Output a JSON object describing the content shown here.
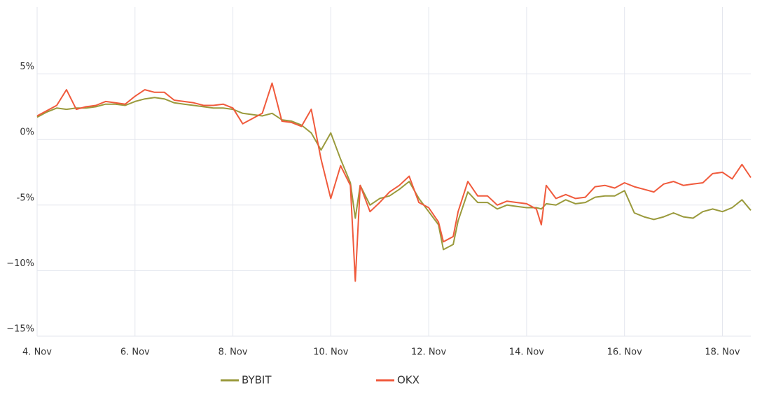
{
  "chart_data": {
    "type": "line",
    "x": [
      4.0,
      4.2,
      4.4,
      4.6,
      4.8,
      5.0,
      5.2,
      5.4,
      5.6,
      5.8,
      6.0,
      6.2,
      6.4,
      6.6,
      6.8,
      7.0,
      7.2,
      7.4,
      7.6,
      7.8,
      8.0,
      8.2,
      8.4,
      8.6,
      8.8,
      9.0,
      9.2,
      9.4,
      9.6,
      9.8,
      10.0,
      10.2,
      10.4,
      10.5,
      10.6,
      10.8,
      11.0,
      11.2,
      11.4,
      11.6,
      11.8,
      12.0,
      12.2,
      12.3,
      12.5,
      12.6,
      12.8,
      13.0,
      13.2,
      13.4,
      13.6,
      13.8,
      14.0,
      14.2,
      14.3,
      14.4,
      14.6,
      14.8,
      15.0,
      15.2,
      15.4,
      15.6,
      15.8,
      16.0,
      16.2,
      16.4,
      16.6,
      16.8,
      17.0,
      17.2,
      17.4,
      17.6,
      17.8,
      18.0,
      18.2,
      18.4,
      18.58
    ],
    "series": [
      {
        "name": "BYBIT",
        "color": "#9a9a3c",
        "values": [
          1.7,
          2.1,
          2.4,
          2.3,
          2.4,
          2.4,
          2.5,
          2.7,
          2.7,
          2.6,
          2.9,
          3.1,
          3.2,
          3.1,
          2.8,
          2.7,
          2.6,
          2.5,
          2.4,
          2.4,
          2.3,
          2.0,
          1.9,
          1.8,
          2.0,
          1.5,
          1.4,
          1.1,
          0.5,
          -0.8,
          0.5,
          -1.5,
          -3.3,
          -6.0,
          -3.5,
          -5.0,
          -4.5,
          -4.3,
          -3.8,
          -3.2,
          -4.5,
          -5.5,
          -6.5,
          -8.4,
          -8.0,
          -6.2,
          -4.0,
          -4.8,
          -4.8,
          -5.3,
          -5.0,
          -5.1,
          -5.2,
          -5.2,
          -5.3,
          -4.9,
          -5.0,
          -4.6,
          -4.9,
          -4.8,
          -4.4,
          -4.3,
          -4.3,
          -3.9,
          -5.6,
          -5.9,
          -6.1,
          -5.9,
          -5.6,
          -5.9,
          -6.0,
          -5.5,
          -5.3,
          -5.5,
          -5.2,
          -4.6,
          -5.4
        ]
      },
      {
        "name": "OKX",
        "color": "#f05a3c",
        "values": [
          1.8,
          2.2,
          2.6,
          3.8,
          2.3,
          2.5,
          2.6,
          2.9,
          2.8,
          2.7,
          3.3,
          3.8,
          3.6,
          3.6,
          3.0,
          2.9,
          2.8,
          2.6,
          2.6,
          2.7,
          2.4,
          1.2,
          1.6,
          2.0,
          4.3,
          1.4,
          1.3,
          1.0,
          2.3,
          -1.5,
          -4.5,
          -2.0,
          -3.5,
          -10.8,
          -3.5,
          -5.5,
          -4.8,
          -4.0,
          -3.5,
          -2.8,
          -4.8,
          -5.2,
          -6.3,
          -7.8,
          -7.4,
          -5.5,
          -3.2,
          -4.3,
          -4.3,
          -5.0,
          -4.7,
          -4.8,
          -4.9,
          -5.3,
          -6.5,
          -3.5,
          -4.5,
          -4.2,
          -4.5,
          -4.4,
          -3.6,
          -3.5,
          -3.7,
          -3.3,
          -3.6,
          -3.8,
          -4.0,
          -3.4,
          -3.2,
          -3.5,
          -3.4,
          -3.3,
          -2.6,
          -2.5,
          -3.0,
          -1.9,
          -2.9
        ]
      }
    ],
    "xlim": [
      4,
      18.58
    ],
    "xticks": [
      {
        "value": 4,
        "label": "4. Nov"
      },
      {
        "value": 6,
        "label": "6. Nov"
      },
      {
        "value": 8,
        "label": "8. Nov"
      },
      {
        "value": 10,
        "label": "10. Nov"
      },
      {
        "value": 12,
        "label": "12. Nov"
      },
      {
        "value": 14,
        "label": "14. Nov"
      },
      {
        "value": 16,
        "label": "16. Nov"
      },
      {
        "value": 18,
        "label": "18. Nov"
      }
    ],
    "ylim": [
      -15,
      10
    ],
    "yticks": [
      {
        "value": -15,
        "label": "−15%"
      },
      {
        "value": -10,
        "label": "−10%"
      },
      {
        "value": -5,
        "label": "-5%"
      },
      {
        "value": 0,
        "label": "0%"
      },
      {
        "value": 5,
        "label": "5%"
      }
    ],
    "grid": true
  }
}
